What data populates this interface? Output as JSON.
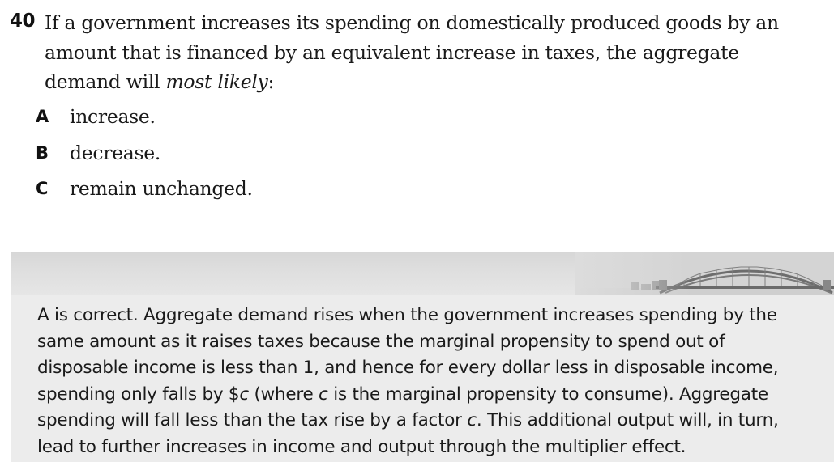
{
  "question": {
    "number": "40",
    "text_before": "If a government increases its spending on domestically produced goods by an amount that is financed by an equivalent increase in taxes, the aggregate demand will ",
    "text_emphasis": "most likely",
    "text_after": ":"
  },
  "options": [
    {
      "letter": "A",
      "text": "increase."
    },
    {
      "letter": "B",
      "text": "decrease."
    },
    {
      "letter": "C",
      "text": "remain unchanged."
    }
  ],
  "answer": {
    "p1": "A is correct. Aggregate demand rises when the government increases spending by the same amount as it raises taxes because the marginal propensity to spend out of disposable income is less than 1, and hence for every dollar less in disposable income, spending only falls by $",
    "var1": "c",
    "p2": " (where ",
    "var2": "c",
    "p3": " is the marginal propensity to consume). Aggregate spending will fall less than the tax rise by a factor ",
    "var3": "c",
    "p4": ". This additional output will, in turn, lead to further increases in income and output through the multiplier effect."
  },
  "banner_image": "bridge-silhouette",
  "colors": {
    "panel_background": "#ececec",
    "banner_background": "#dcdcdc",
    "text": "#1a1a1a"
  }
}
